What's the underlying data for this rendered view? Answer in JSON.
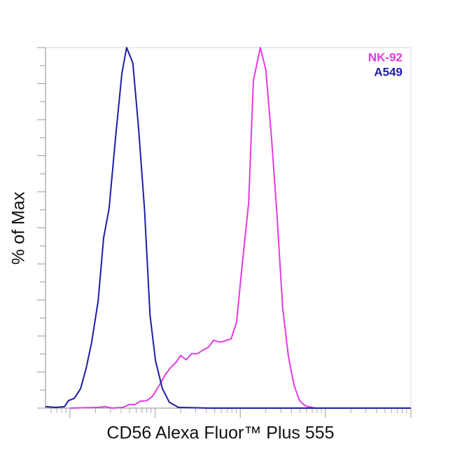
{
  "chart_data": {
    "type": "line",
    "xlabel": "CD56 Alexa Fluor™ Plus 555",
    "ylabel": "% of Max",
    "xlim": [
      0,
      100
    ],
    "ylim": [
      0,
      100
    ],
    "xticks": [
      6.7,
      30.0,
      53.3,
      76.6,
      100
    ],
    "xminorticks": [
      1.5,
      3.1,
      4.4,
      5.6,
      13.7,
      17.8,
      20.7,
      23.0,
      24.8,
      26.4,
      27.7,
      28.9,
      37.0,
      41.1,
      44.0,
      46.3,
      48.1,
      49.7,
      51.0,
      52.2,
      60.3,
      64.4,
      67.3,
      69.6,
      71.4,
      73.0,
      74.3,
      75.5,
      83.6,
      87.7,
      90.6,
      92.9,
      94.7,
      96.3,
      97.6,
      98.8
    ],
    "yticks": [
      0,
      5,
      10,
      15,
      20,
      25,
      30,
      35,
      40,
      45,
      50,
      55,
      60,
      65,
      70,
      75,
      80,
      85,
      90,
      95,
      100
    ],
    "series": [
      {
        "name": "NK-92",
        "color": "#e23be2",
        "x": [
          6.7,
          14.4,
          16.3,
          18.2,
          21.1,
          23.0,
          24.5,
          25.9,
          27.8,
          29.3,
          31.2,
          32.8,
          34.3,
          35.8,
          37.0,
          38.5,
          40.0,
          41.6,
          43.1,
          44.6,
          46.0,
          47.9,
          50.8,
          52.3,
          53.8,
          55.6,
          56.9,
          58.8,
          60.3,
          61.9,
          63.4,
          64.9,
          66.5,
          68.0,
          69.5,
          71.1,
          73.8,
          100
        ],
        "values": [
          0,
          0.2,
          0.4,
          0,
          0.2,
          1.0,
          1.0,
          1.9,
          2.1,
          3.3,
          6.4,
          9.3,
          11.3,
          12.8,
          14.6,
          13.4,
          15.1,
          15.1,
          16.1,
          16.9,
          18.8,
          18.3,
          19.2,
          23.9,
          39.4,
          56.9,
          90.9,
          100,
          93.8,
          74.4,
          53.0,
          27.8,
          14.2,
          6.4,
          2.1,
          0.6,
          0,
          0
        ]
      },
      {
        "name": "A549",
        "color": "#1c1ca8",
        "x": [
          0,
          2.9,
          5.2,
          6.3,
          7.9,
          9.6,
          11.1,
          12.6,
          14.4,
          15.9,
          17.4,
          19.2,
          20.9,
          22.2,
          23.9,
          25.5,
          27.1,
          28.6,
          30.1,
          32.0,
          33.9,
          36.4,
          45.0,
          100
        ],
        "values": [
          0.4,
          0.2,
          0.4,
          2.1,
          2.7,
          5.4,
          10.9,
          18.1,
          29.7,
          47.2,
          55.3,
          75.3,
          92.8,
          100,
          95.7,
          77.3,
          55.0,
          25.8,
          13.2,
          5.4,
          1.6,
          0.2,
          0,
          0
        ]
      }
    ]
  }
}
